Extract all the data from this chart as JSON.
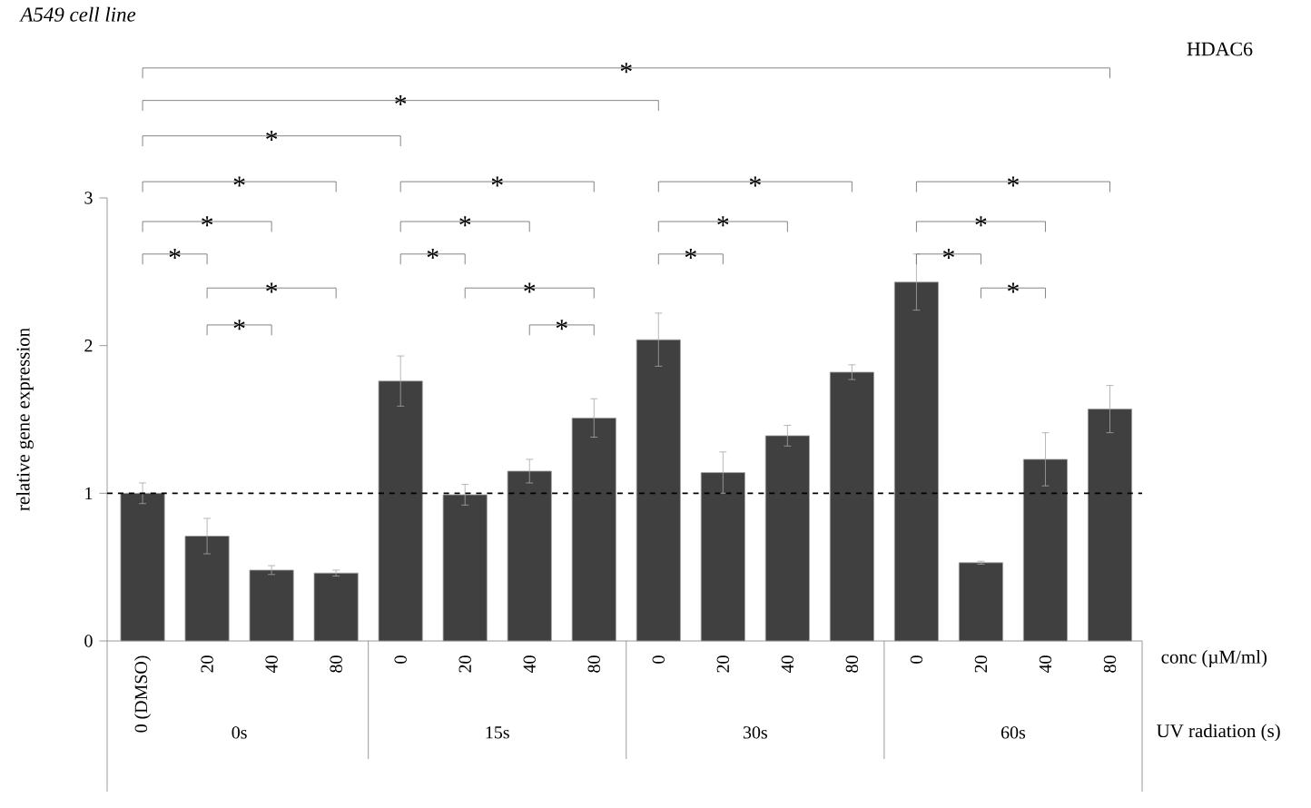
{
  "chart_data": {
    "type": "bar",
    "title": "A549 cell line",
    "categories": [
      "0 (DMSO)",
      "20",
      "40",
      "80",
      "0",
      "20",
      "40",
      "80",
      "0",
      "20",
      "40",
      "80",
      "0",
      "20",
      "40",
      "80"
    ],
    "values": [
      1.0,
      0.71,
      0.48,
      0.46,
      1.76,
      0.99,
      1.15,
      1.51,
      2.04,
      1.14,
      1.39,
      1.82,
      2.43,
      0.53,
      1.23,
      1.57
    ],
    "errors": [
      0.07,
      0.12,
      0.03,
      0.02,
      0.17,
      0.07,
      0.08,
      0.13,
      0.18,
      0.14,
      0.07,
      0.05,
      0.19,
      0.01,
      0.18,
      0.16
    ],
    "color": "#404040",
    "xlabel": "conc (µM/ml)",
    "ylabel": "relative gene expression",
    "ylim": [
      0,
      3
    ],
    "yticks": [
      0,
      1,
      2,
      3
    ],
    "ref_lines": [
      {
        "axis": "y",
        "value": 1,
        "color": "#000000",
        "line_style": "dashed"
      }
    ],
    "annotations": [
      "HDAC6",
      "0s",
      "15s",
      "30s",
      "60s",
      "UV radiation (s)",
      "*",
      "*",
      "*",
      "*",
      "*",
      "*",
      "*",
      "*",
      "*",
      "*",
      "*",
      "*",
      "*",
      "*",
      "*",
      "*",
      "*",
      "*",
      "*",
      "*"
    ]
  }
}
